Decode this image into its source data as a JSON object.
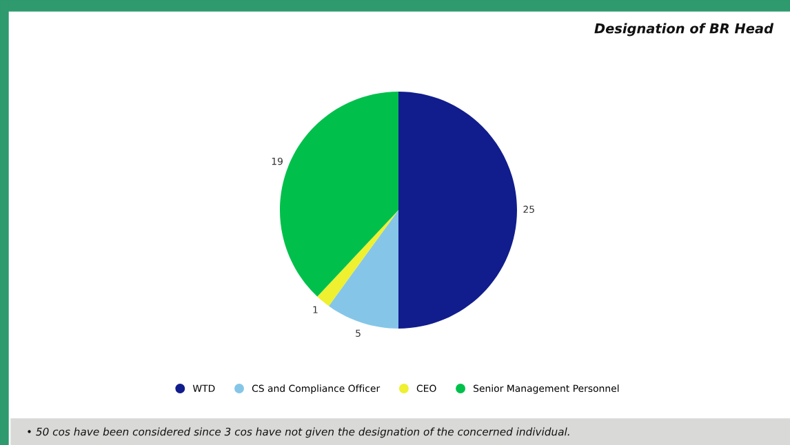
{
  "chart_data": {
    "type": "pie",
    "title": "Designation of BR Head",
    "categories": [
      "WTD",
      "CS and Compliance Officer",
      "CEO",
      "Senior Management Personnel"
    ],
    "values": [
      25,
      5,
      1,
      19
    ],
    "colors": [
      "#111d8c",
      "#85c6e8",
      "#eef030",
      "#00c04b"
    ],
    "data_labels": true,
    "legend": "bottom",
    "annotations": [
      "• 50 cos have been considered since 3 cos have not given the designation of the concerned individual."
    ]
  }
}
